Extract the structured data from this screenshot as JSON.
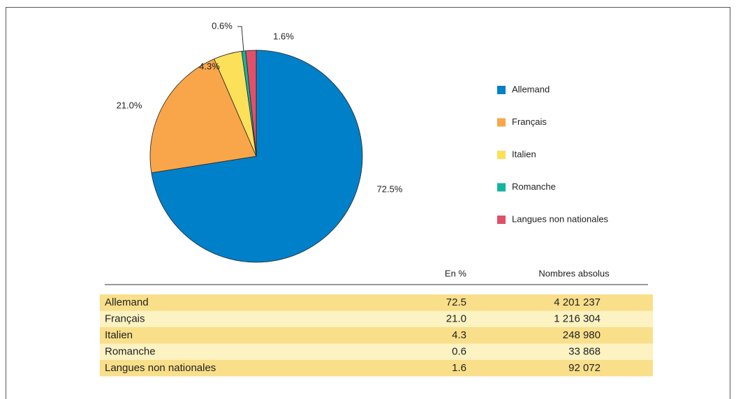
{
  "chart_data": {
    "type": "pie",
    "categories": [
      "Allemand",
      "Français",
      "Italien",
      "Romanche",
      "Langues non nationales"
    ],
    "values": [
      72.5,
      21.0,
      4.3,
      0.6,
      1.6
    ],
    "value_labels": [
      "72.5%",
      "21.0%",
      "4.3%",
      "0.6%",
      "1.6%"
    ],
    "colors": [
      "#0080c8",
      "#f9a64a",
      "#fde05a",
      "#14b4a0",
      "#e0506a"
    ],
    "legend": "right"
  },
  "table": {
    "headers": [
      "En %",
      "Nombres absolus"
    ],
    "rows": [
      [
        "Allemand",
        "72.5",
        "4 201 237"
      ],
      [
        "Français",
        "21.0",
        "1 216 304"
      ],
      [
        "Italien",
        "4.3",
        "248 980"
      ],
      [
        "Romanche",
        "0.6",
        "33 868"
      ],
      [
        "Langues non nationales",
        "1.6",
        "92 072"
      ]
    ]
  }
}
